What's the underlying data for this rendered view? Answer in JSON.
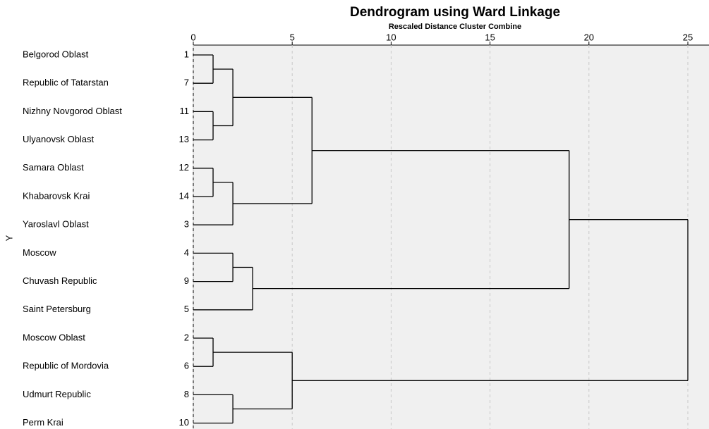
{
  "chart_data": {
    "type": "dendrogram",
    "title": "Dendrogram using Ward Linkage",
    "subtitle": "Rescaled Distance Cluster Combine",
    "y_label": "Y",
    "xlim": [
      0,
      25
    ],
    "xticks": [
      0,
      5,
      10,
      15,
      20,
      25
    ],
    "grid": true,
    "tree": {
      "height": 25,
      "children": [
        {
          "height": 19,
          "children": [
            {
              "height": 6,
              "children": [
                {
                  "height": 2,
                  "children": [
                    {
                      "height": 1,
                      "children": [
                        {
                          "label": "Belgorod Oblast",
                          "case": 1
                        },
                        {
                          "label": "Republic of Tatarstan",
                          "case": 7
                        }
                      ]
                    },
                    {
                      "height": 1,
                      "children": [
                        {
                          "label": "Nizhny Novgorod Oblast",
                          "case": 11
                        },
                        {
                          "label": "Ulyanovsk Oblast",
                          "case": 13
                        }
                      ]
                    }
                  ]
                },
                {
                  "height": 2,
                  "children": [
                    {
                      "height": 1,
                      "children": [
                        {
                          "label": "Samara Oblast",
                          "case": 12
                        },
                        {
                          "label": "Khabarovsk Krai",
                          "case": 14
                        }
                      ]
                    },
                    {
                      "label": "Yaroslavl Oblast",
                      "case": 3
                    }
                  ]
                }
              ]
            },
            {
              "height": 3,
              "children": [
                {
                  "height": 2,
                  "children": [
                    {
                      "label": "Moscow",
                      "case": 4
                    },
                    {
                      "label": "Chuvash Republic",
                      "case": 9
                    }
                  ]
                },
                {
                  "label": "Saint Petersburg",
                  "case": 5
                }
              ]
            }
          ]
        },
        {
          "height": 5,
          "children": [
            {
              "height": 1,
              "children": [
                {
                  "label": "Moscow Oblast",
                  "case": 2
                },
                {
                  "label": "Republic of Mordovia",
                  "case": 6
                }
              ]
            },
            {
              "height": 2,
              "children": [
                {
                  "label": "Udmurt Republic",
                  "case": 8
                },
                {
                  "label": "Perm Krai",
                  "case": 10
                }
              ]
            }
          ]
        }
      ]
    }
  }
}
